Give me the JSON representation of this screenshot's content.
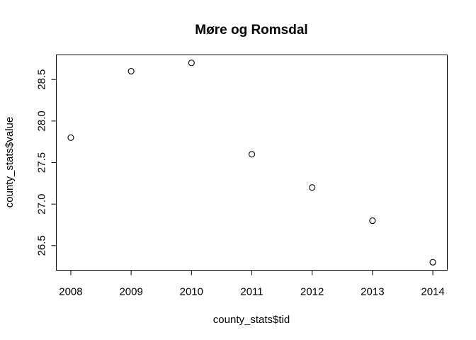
{
  "chart_data": {
    "type": "scatter",
    "title": "Møre og Romsdal",
    "xlabel": "county_stats$tid",
    "ylabel": "county_stats$value",
    "x": [
      2008,
      2009,
      2010,
      2011,
      2012,
      2013,
      2014
    ],
    "y": [
      27.8,
      28.6,
      28.7,
      27.6,
      27.2,
      26.8,
      26.3
    ],
    "xlim": [
      2007.76,
      2014.24
    ],
    "ylim": [
      26.204,
      28.796
    ],
    "xticks": [
      "2008",
      "2009",
      "2010",
      "2011",
      "2012",
      "2013",
      "2014"
    ],
    "yticks": [
      "26.5",
      "27.0",
      "27.5",
      "28.0",
      "28.5"
    ],
    "marker": "open-circle",
    "grid": false,
    "legend": "none",
    "colors": {
      "point": "#000000",
      "background": "#ffffff"
    }
  }
}
